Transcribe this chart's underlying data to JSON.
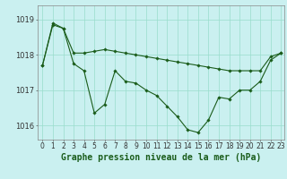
{
  "background_color": "#caf0f0",
  "grid_color": "#99ddcc",
  "line_color": "#1a5c1a",
  "marker_color": "#1a5c1a",
  "xlabel": "Graphe pression niveau de la mer (hPa)",
  "ylim": [
    1015.6,
    1019.4
  ],
  "xlim": [
    -0.5,
    23.3
  ],
  "yticks": [
    1016,
    1017,
    1018,
    1019
  ],
  "xticks": [
    0,
    1,
    2,
    3,
    4,
    5,
    6,
    7,
    8,
    9,
    10,
    11,
    12,
    13,
    14,
    15,
    16,
    17,
    18,
    19,
    20,
    21,
    22,
    23
  ],
  "series1_x": [
    0,
    1,
    2,
    3,
    4,
    5,
    6,
    7,
    8,
    9,
    10,
    11,
    12,
    13,
    14,
    15,
    16,
    17,
    18,
    19,
    20,
    21,
    22,
    23
  ],
  "series1_y": [
    1017.7,
    1018.9,
    1018.75,
    1017.75,
    1017.55,
    1016.35,
    1016.6,
    1017.55,
    1017.25,
    1017.2,
    1017.0,
    1016.85,
    1016.55,
    1016.25,
    1015.88,
    1015.8,
    1016.15,
    1016.8,
    1016.75,
    1017.0,
    1017.0,
    1017.25,
    1017.85,
    1018.05
  ],
  "series2_x": [
    0,
    1,
    2,
    3,
    4,
    5,
    6,
    7,
    8,
    9,
    10,
    11,
    12,
    13,
    14,
    15,
    16,
    17,
    18,
    19,
    20,
    21,
    22,
    23
  ],
  "series2_y": [
    1017.7,
    1018.85,
    1018.75,
    1018.05,
    1018.05,
    1018.1,
    1018.15,
    1018.1,
    1018.05,
    1018.0,
    1017.95,
    1017.9,
    1017.85,
    1017.8,
    1017.75,
    1017.7,
    1017.65,
    1017.6,
    1017.55,
    1017.55,
    1017.55,
    1017.55,
    1017.95,
    1018.05
  ],
  "ytick_fontsize": 6,
  "xtick_fontsize": 5.5,
  "xlabel_fontsize": 7,
  "linewidth": 0.8,
  "markersize": 1.8
}
